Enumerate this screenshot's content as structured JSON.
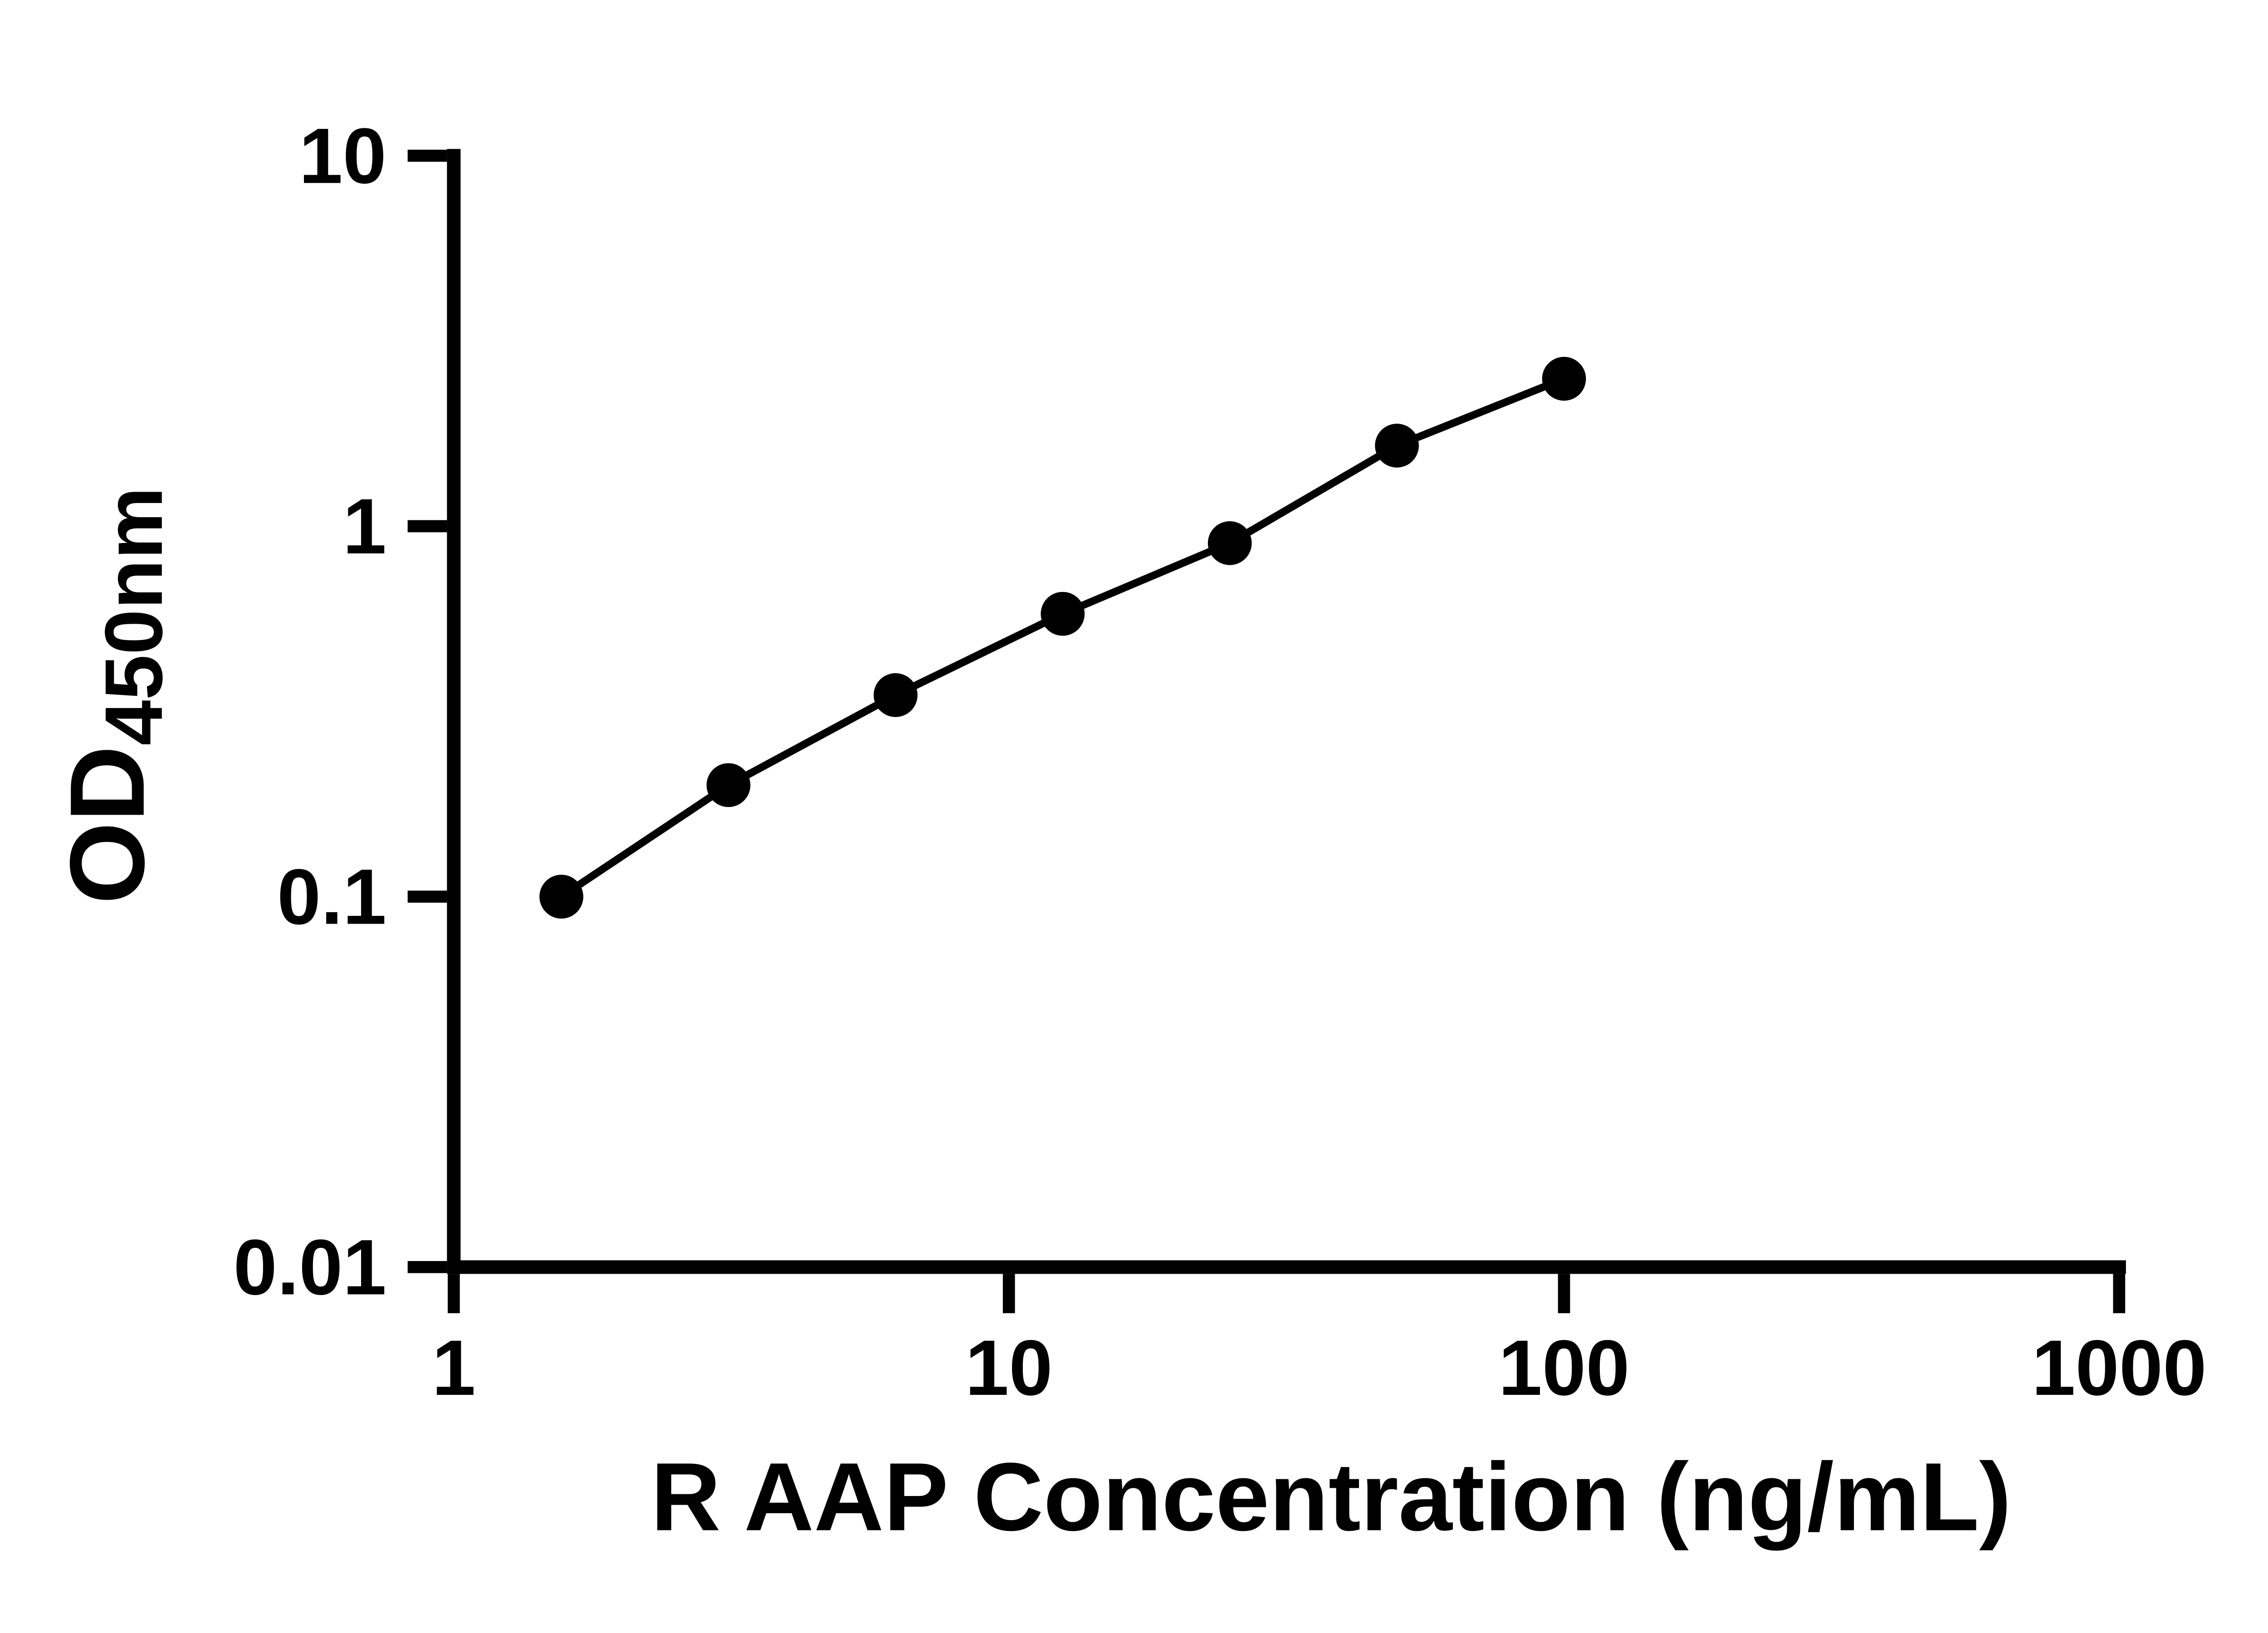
{
  "chart_data": {
    "type": "scatter",
    "title": "",
    "xlabel": "R AAP Concentration (ng/mL)",
    "ylabel_main": "OD",
    "ylabel_sub": "450nm",
    "x_scale": "log",
    "y_scale": "log",
    "xlim": [
      1,
      1000
    ],
    "ylim": [
      0.01,
      10
    ],
    "grid": false,
    "legend": "none",
    "x_ticks": [
      {
        "value": 1,
        "label": "1"
      },
      {
        "value": 10,
        "label": "10"
      },
      {
        "value": 100,
        "label": "100"
      },
      {
        "value": 1000,
        "label": "1000"
      }
    ],
    "y_ticks": [
      {
        "value": 10,
        "label": "10"
      },
      {
        "value": 1,
        "label": "1"
      },
      {
        "value": 0.1,
        "label": "0.1"
      },
      {
        "value": 0.01,
        "label": "0.01"
      }
    ],
    "points": [
      {
        "x": 1.5625,
        "y": 0.1
      },
      {
        "x": 3.125,
        "y": 0.2
      },
      {
        "x": 6.25,
        "y": 0.35
      },
      {
        "x": 12.5,
        "y": 0.58
      },
      {
        "x": 25,
        "y": 0.9
      },
      {
        "x": 50,
        "y": 1.65
      },
      {
        "x": 100,
        "y": 2.5
      }
    ],
    "line_color": "#000000",
    "point_color": "#000000",
    "axis_color": "#000000",
    "background": "#ffffff"
  }
}
